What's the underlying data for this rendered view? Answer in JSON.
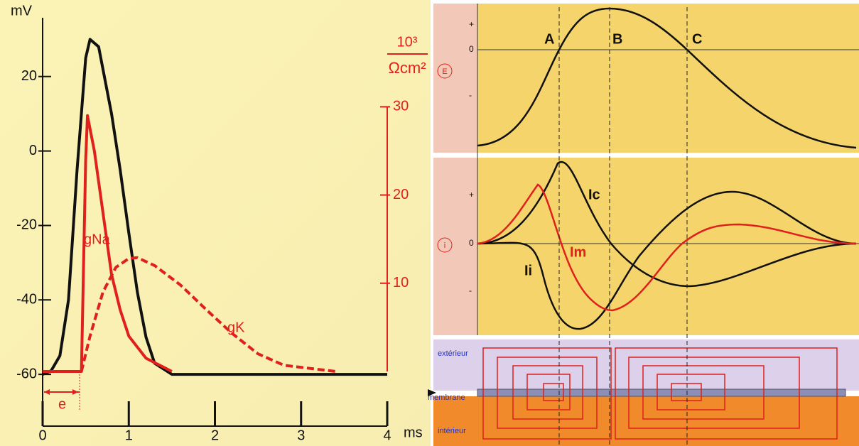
{
  "chart_data": {
    "type": "line",
    "ylabel": "mV",
    "xlabel": "ms",
    "y2label": [
      "10³",
      "Ωcm²"
    ],
    "xlim": [
      0,
      4
    ],
    "xticks": [
      0,
      1,
      2,
      3,
      4
    ],
    "ylim": [
      -73.9,
      37.7
    ],
    "yticks": [
      -60,
      -40,
      -20,
      0,
      20
    ],
    "y2lim": [
      -6.2,
      40.9
    ],
    "y2ticks": [
      10,
      20,
      30
    ],
    "series": [
      {
        "color": "#111111",
        "style": "solid",
        "x": [
          0,
          0.1,
          0.2,
          0.3,
          0.4,
          0.5,
          0.55,
          0.65,
          0.8,
          0.9,
          1.0,
          1.1,
          1.2,
          1.3,
          1.5,
          4.0
        ],
        "values": [
          -60,
          -59,
          -55,
          -40,
          -5,
          25,
          30,
          28,
          10,
          -5,
          -22,
          -38,
          -50,
          -57,
          -60,
          -60
        ]
      },
      {
        "name": "gNa",
        "color": "#e0201c",
        "style": "solid",
        "axis": "y2",
        "x": [
          0,
          0.45,
          0.5,
          0.52,
          0.6,
          0.7,
          0.8,
          0.9,
          1.0,
          1.2,
          1.5
        ],
        "values": [
          0,
          0,
          24,
          29,
          25,
          18,
          11,
          7,
          4,
          1.5,
          0
        ]
      },
      {
        "name": "gK",
        "color": "#e0201c",
        "style": "dashed",
        "axis": "y2",
        "x": [
          0.45,
          0.55,
          0.7,
          0.85,
          1.0,
          1.1,
          1.3,
          1.6,
          1.9,
          2.2,
          2.5,
          2.8,
          3.4
        ],
        "values": [
          0,
          4,
          9,
          11.8,
          12.8,
          12.9,
          12,
          9.8,
          7,
          4.3,
          2,
          0.7,
          0
        ]
      }
    ],
    "annotations": [
      "e"
    ]
  },
  "diagram": {
    "panels": [
      {
        "label": "E",
        "ticks": [
          "+",
          "0",
          "-"
        ]
      },
      {
        "label": "i",
        "ticks": [
          "+",
          "0",
          "-"
        ]
      }
    ],
    "markers": [
      "A",
      "B",
      "C"
    ],
    "curves": [
      "Ic",
      "Ii",
      "Im"
    ],
    "regions": [
      "extérieur",
      "membrane",
      "intérieur"
    ]
  }
}
